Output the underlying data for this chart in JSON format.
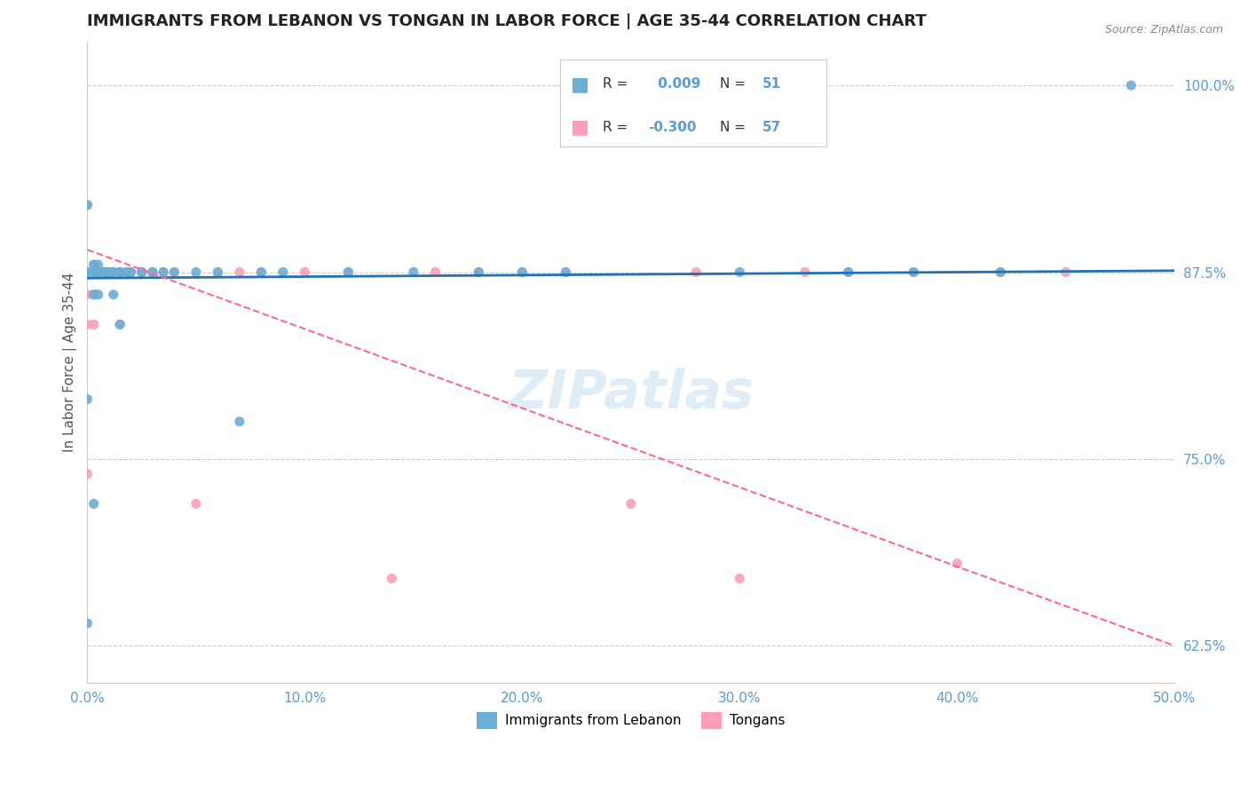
{
  "title": "IMMIGRANTS FROM LEBANON VS TONGAN IN LABOR FORCE | AGE 35-44 CORRELATION CHART",
  "source": "Source: ZipAtlas.com",
  "ylabel": "In Labor Force | Age 35-44",
  "xlim": [
    0.0,
    0.5
  ],
  "ylim": [
    0.6,
    1.03
  ],
  "yticks": [
    0.625,
    0.75,
    0.875,
    1.0
  ],
  "ytick_labels": [
    "62.5%",
    "75.0%",
    "87.5%",
    "100.0%"
  ],
  "xticks": [
    0.0,
    0.1,
    0.2,
    0.3,
    0.4,
    0.5
  ],
  "xtick_labels": [
    "0.0%",
    "10.0%",
    "20.0%",
    "30.0%",
    "40.0%",
    "50.0%"
  ],
  "legend_r1_label": "R = ",
  "legend_r1_val": " 0.009",
  "legend_n1_label": "N = ",
  "legend_n1_val": "51",
  "legend_r2_label": "R = ",
  "legend_r2_val": "-0.300",
  "legend_n2_label": "N = ",
  "legend_n2_val": "57",
  "lebanon_color": "#6baed6",
  "tongan_color": "#fa9fb5",
  "trend_lebanon_color": "#2171b5",
  "trend_tongan_color": "#f768a1",
  "axis_color": "#5b9bd5",
  "watermark": "ZIPatlas",
  "lebanon_x": [
    0.0,
    0.0,
    0.0,
    0.0,
    0.0,
    0.003,
    0.003,
    0.003,
    0.003,
    0.003,
    0.005,
    0.005,
    0.005,
    0.005,
    0.008,
    0.008,
    0.008,
    0.008,
    0.01,
    0.01,
    0.012,
    0.012,
    0.015,
    0.015,
    0.015,
    0.018,
    0.02,
    0.025,
    0.03,
    0.035,
    0.04,
    0.05,
    0.06,
    0.07,
    0.08,
    0.09,
    0.12,
    0.15,
    0.18,
    0.2,
    0.22,
    0.3,
    0.35,
    0.38,
    0.42,
    0.0,
    0.0,
    0.003,
    0.005,
    0.008,
    0.48
  ],
  "lebanon_y": [
    0.875,
    0.875,
    0.875,
    0.875,
    0.92,
    0.875,
    0.875,
    0.875,
    0.86,
    0.88,
    0.875,
    0.875,
    0.86,
    0.88,
    0.875,
    0.875,
    0.875,
    0.875,
    0.875,
    0.875,
    0.875,
    0.86,
    0.875,
    0.875,
    0.84,
    0.875,
    0.875,
    0.875,
    0.875,
    0.875,
    0.875,
    0.875,
    0.875,
    0.775,
    0.875,
    0.875,
    0.875,
    0.875,
    0.875,
    0.875,
    0.875,
    0.875,
    0.875,
    0.875,
    0.875,
    0.79,
    0.64,
    0.72,
    0.875,
    0.875,
    1.0
  ],
  "tongan_x": [
    0.0,
    0.0,
    0.0,
    0.0,
    0.0,
    0.0,
    0.003,
    0.003,
    0.003,
    0.003,
    0.003,
    0.005,
    0.005,
    0.008,
    0.008,
    0.008,
    0.01,
    0.012,
    0.015,
    0.015,
    0.018,
    0.02,
    0.025,
    0.03,
    0.035,
    0.04,
    0.05,
    0.06,
    0.07,
    0.08,
    0.1,
    0.12,
    0.14,
    0.16,
    0.18,
    0.2,
    0.22,
    0.25,
    0.28,
    0.3,
    0.33,
    0.35,
    0.38,
    0.4,
    0.42,
    0.45,
    0.0,
    0.003,
    0.005,
    0.008,
    0.01,
    0.012,
    0.015,
    0.018,
    0.02,
    0.025,
    0.03
  ],
  "tongan_y": [
    0.875,
    0.875,
    0.875,
    0.92,
    0.86,
    0.84,
    0.875,
    0.875,
    0.875,
    0.86,
    0.88,
    0.875,
    0.875,
    0.875,
    0.875,
    0.875,
    0.875,
    0.875,
    0.875,
    0.84,
    0.875,
    0.875,
    0.875,
    0.875,
    0.875,
    0.875,
    0.72,
    0.875,
    0.875,
    0.875,
    0.875,
    0.875,
    0.67,
    0.875,
    0.875,
    0.875,
    0.875,
    0.72,
    0.875,
    0.67,
    0.875,
    0.875,
    0.875,
    0.68,
    0.875,
    0.875,
    0.74,
    0.84,
    0.875,
    0.875,
    0.875,
    0.875,
    0.875,
    0.875,
    0.875,
    0.875,
    0.875
  ],
  "lebanon_trend_x": [
    0.0,
    0.5
  ],
  "lebanon_trend_y": [
    0.871,
    0.876
  ],
  "tongan_trend_x": [
    0.0,
    0.5
  ],
  "tongan_trend_y": [
    0.89,
    0.625
  ]
}
